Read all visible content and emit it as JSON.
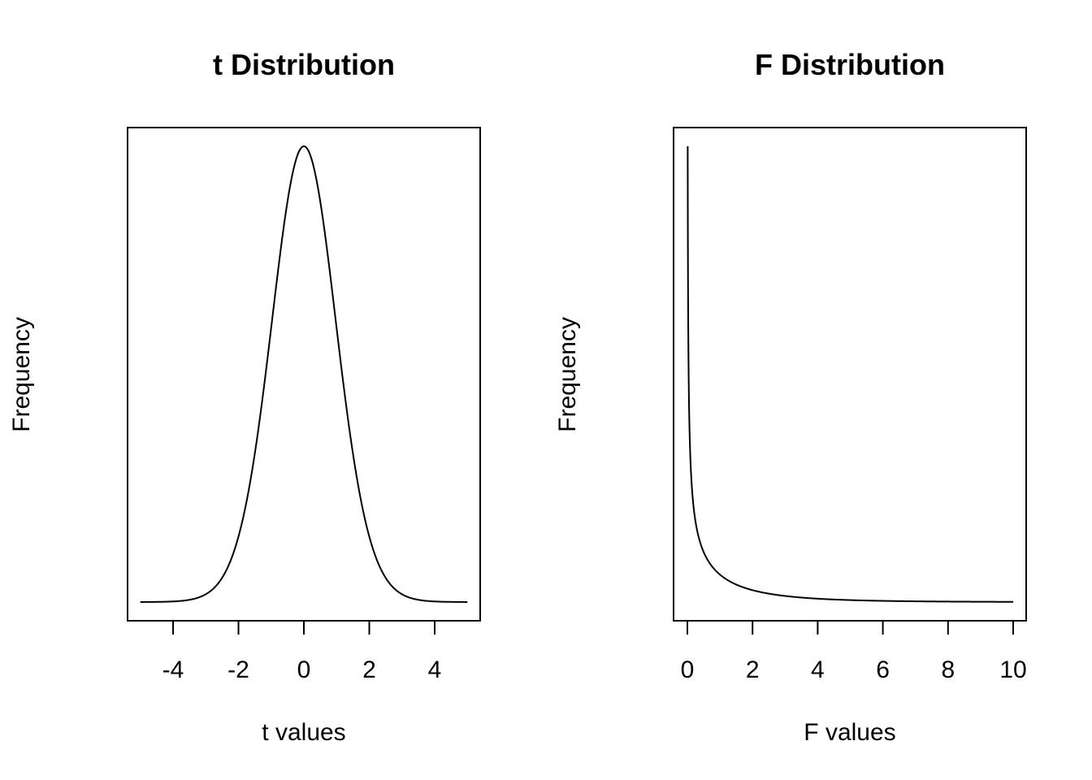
{
  "chart_data": [
    {
      "type": "line",
      "title": "t Distribution",
      "xlabel": "t values",
      "ylabel": "Frequency",
      "xlim": [
        -5,
        5
      ],
      "ylim": [
        0,
        0.4
      ],
      "xticks": [
        -4,
        -2,
        0,
        2,
        4
      ],
      "yticks_shown": false,
      "grid": false,
      "distribution": "t",
      "df": 30,
      "series": [
        {
          "x": [
            -5,
            -4.5,
            -4,
            -3.5,
            -3,
            -2.5,
            -2,
            -1.5,
            -1,
            -0.5,
            0,
            0.5,
            1,
            1.5,
            2,
            2.5,
            3,
            3.5,
            4,
            4.5,
            5
          ],
          "y": [
            0.0001,
            0.0002,
            0.0008,
            0.0022,
            0.0058,
            0.018,
            0.0546,
            0.128,
            0.236,
            0.347,
            0.396,
            0.347,
            0.236,
            0.128,
            0.0546,
            0.018,
            0.0058,
            0.0022,
            0.0008,
            0.0002,
            0.0001
          ]
        }
      ]
    },
    {
      "type": "line",
      "title": "F Distribution",
      "xlabel": "F values",
      "ylabel": "Frequency",
      "xlim": [
        0,
        10
      ],
      "ylim": [
        0,
        3.5
      ],
      "xticks": [
        0,
        2,
        4,
        6,
        8,
        10
      ],
      "yticks_shown": false,
      "grid": false,
      "distribution": "F",
      "df1": 1,
      "df2": 20,
      "series": [
        {
          "x": [
            0.01,
            0.05,
            0.1,
            0.2,
            0.5,
            1,
            2,
            3,
            4,
            6,
            8,
            10
          ],
          "y": [
            3.9,
            1.73,
            1.21,
            0.82,
            0.45,
            0.23,
            0.09,
            0.045,
            0.025,
            0.009,
            0.0035,
            0.0015
          ]
        }
      ]
    }
  ]
}
